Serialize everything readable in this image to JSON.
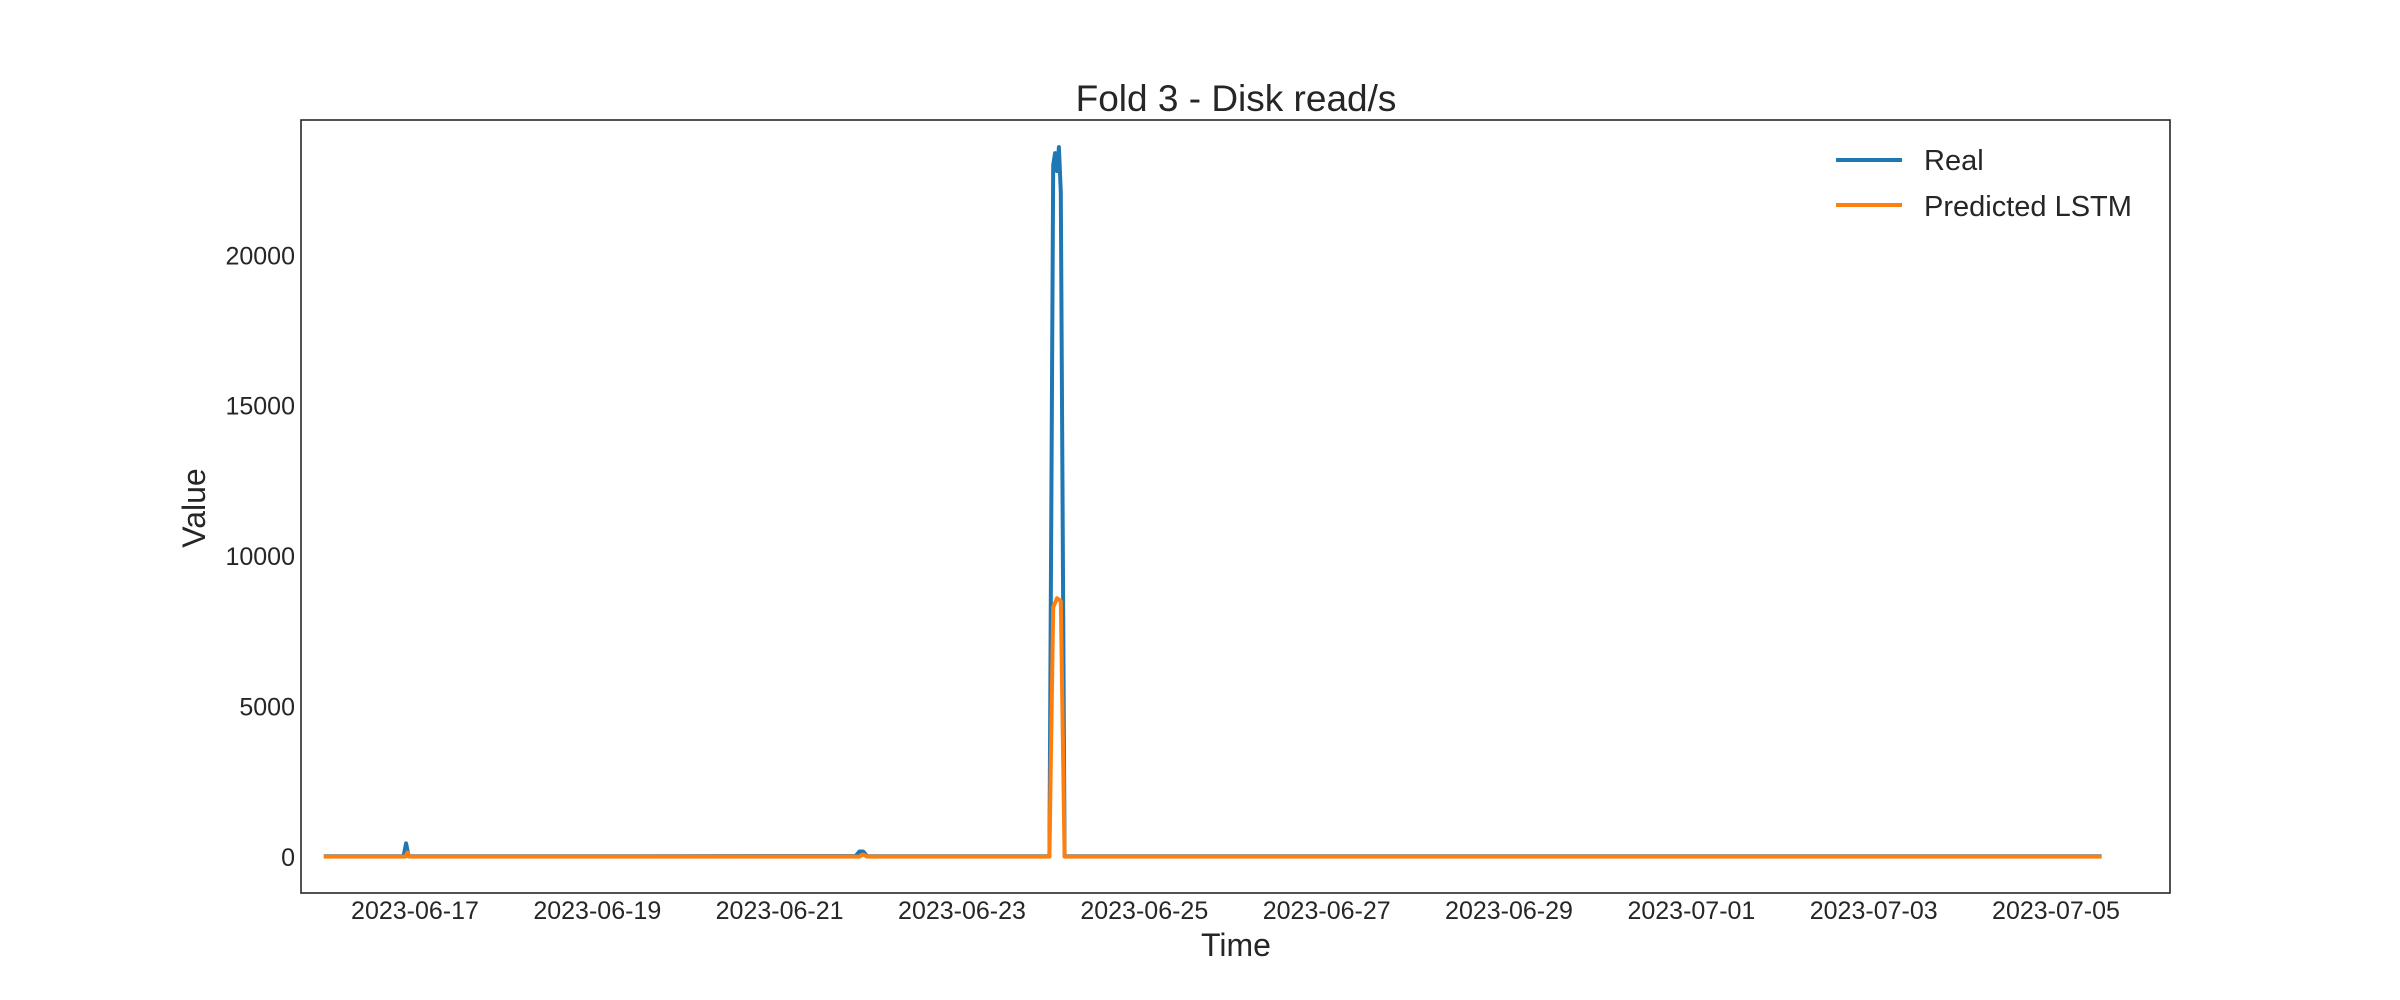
{
  "chart_data": {
    "type": "line",
    "title": "Fold 3 - Disk read/s",
    "xlabel": "Time",
    "ylabel": "Value",
    "xlim": [
      "2023-06-15T18:00",
      "2023-07-06T06:00"
    ],
    "ylim": [
      -1200,
      24500
    ],
    "grid": false,
    "legend_position": "top-right",
    "x_ticks": [
      "2023-06-17",
      "2023-06-19",
      "2023-06-21",
      "2023-06-23",
      "2023-06-25",
      "2023-06-27",
      "2023-06-29",
      "2023-07-01",
      "2023-07-03",
      "2023-07-05"
    ],
    "y_ticks": [
      0,
      5000,
      10000,
      15000,
      20000
    ],
    "y_tick_labels": [
      "0",
      "5000",
      "10000",
      "15000",
      "20000"
    ],
    "series": [
      {
        "name": "Real",
        "color": "#1f77b4",
        "points": [
          [
            "2023-06-16T00:00",
            20
          ],
          [
            "2023-06-16T21:00",
            20
          ],
          [
            "2023-06-16T21:40",
            450
          ],
          [
            "2023-06-16T22:20",
            20
          ],
          [
            "2023-06-19T00:00",
            20
          ],
          [
            "2023-06-21T20:00",
            30
          ],
          [
            "2023-06-21T21:00",
            180
          ],
          [
            "2023-06-21T22:00",
            180
          ],
          [
            "2023-06-21T23:00",
            20
          ],
          [
            "2023-06-23T23:00",
            20
          ],
          [
            "2023-06-24T00:00",
            23000
          ],
          [
            "2023-06-24T00:30",
            23400
          ],
          [
            "2023-06-24T01:00",
            22800
          ],
          [
            "2023-06-24T01:30",
            23600
          ],
          [
            "2023-06-24T02:00",
            22100
          ],
          [
            "2023-06-24T03:00",
            20
          ],
          [
            "2023-06-27T00:00",
            20
          ],
          [
            "2023-07-01T00:00",
            20
          ],
          [
            "2023-07-05T12:00",
            20
          ]
        ]
      },
      {
        "name": "Predicted LSTM",
        "color": "#ff7f0e",
        "points": [
          [
            "2023-06-16T00:00",
            10
          ],
          [
            "2023-06-16T21:30",
            10
          ],
          [
            "2023-06-16T22:00",
            150
          ],
          [
            "2023-06-16T22:30",
            10
          ],
          [
            "2023-06-21T21:00",
            10
          ],
          [
            "2023-06-21T22:00",
            80
          ],
          [
            "2023-06-21T23:00",
            10
          ],
          [
            "2023-06-23T23:00",
            10
          ],
          [
            "2023-06-24T00:00",
            8300
          ],
          [
            "2023-06-24T01:00",
            8600
          ],
          [
            "2023-06-24T02:00",
            8500
          ],
          [
            "2023-06-24T03:00",
            10
          ],
          [
            "2023-06-27T00:00",
            10
          ],
          [
            "2023-07-01T00:00",
            10
          ],
          [
            "2023-07-05T12:00",
            10
          ]
        ]
      }
    ]
  }
}
